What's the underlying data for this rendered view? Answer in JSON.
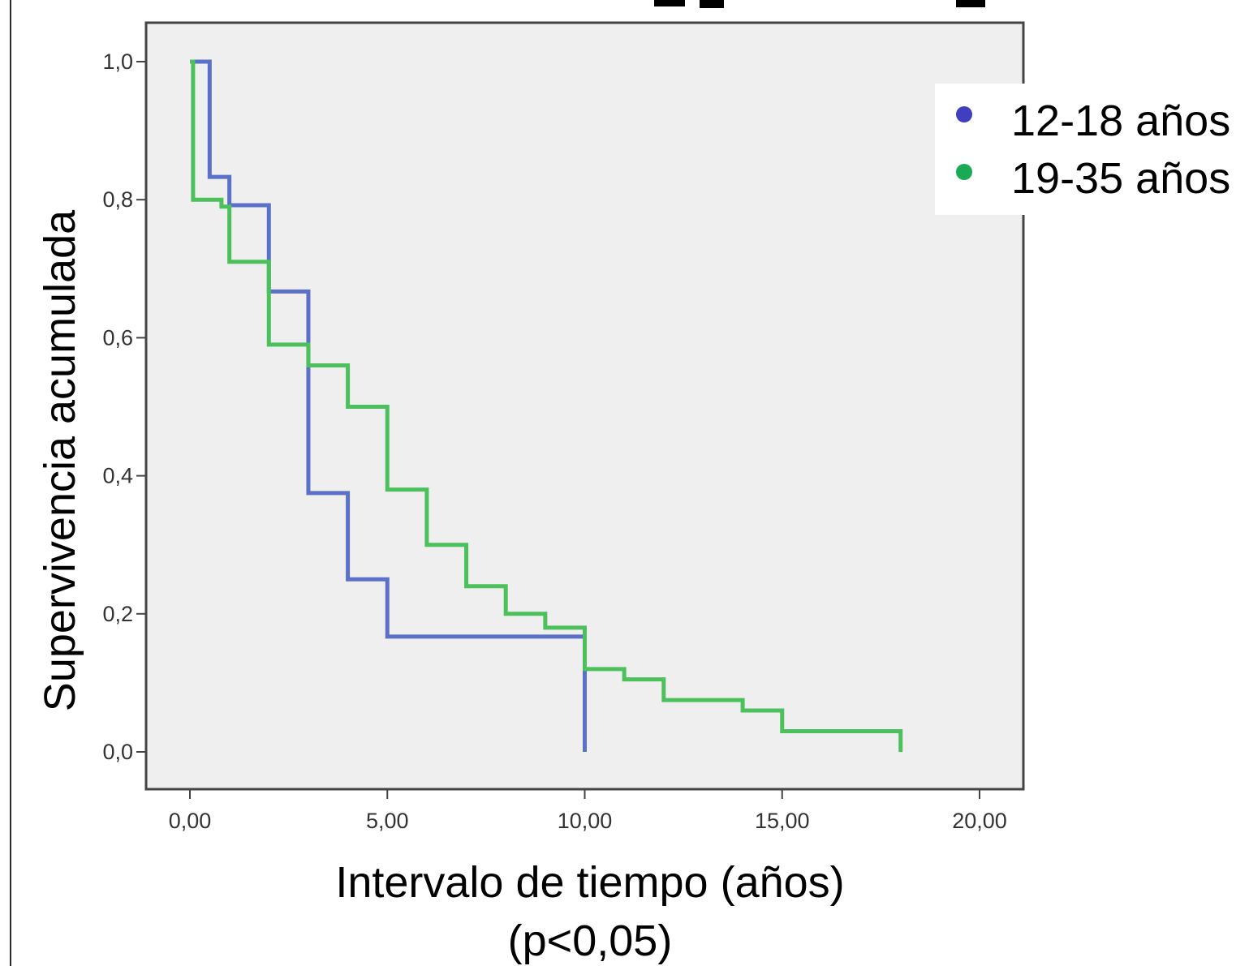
{
  "chart_data": {
    "type": "line",
    "step": true,
    "title": "",
    "xlabel": "Intervalo de tiempo  (años)",
    "xlabel_note": "(p<0,05)",
    "ylabel": "Supervivencia acumulada",
    "xlim": [
      0,
      20
    ],
    "ylim": [
      0,
      1
    ],
    "x_ticks": [
      0,
      5,
      10,
      15,
      20
    ],
    "x_tick_labels": [
      "0,00",
      "5,00",
      "10,00",
      "15,00",
      "20,00"
    ],
    "y_ticks": [
      0,
      0.2,
      0.4,
      0.6,
      0.8,
      1.0
    ],
    "y_tick_labels": [
      "0,0",
      "0,2",
      "0,4",
      "0,6",
      "0,8",
      "1,0"
    ],
    "grid": false,
    "legend_position": "top-right",
    "background": "#efefef",
    "series": [
      {
        "name": "12-18 años",
        "color": "#3f3fbf",
        "line_color": "#5b70c8",
        "x": [
          0,
          0.5,
          1,
          2,
          3,
          4,
          5,
          10,
          10
        ],
        "y": [
          1.0,
          0.833,
          0.792,
          0.667,
          0.375,
          0.25,
          0.167,
          0.083,
          0.0
        ]
      },
      {
        "name": "19-35 años",
        "color": "#1aaa55",
        "line_color": "#4cc05a",
        "x": [
          0,
          0.08,
          0.8,
          1,
          2,
          3,
          4,
          5,
          6,
          7,
          8,
          9,
          10,
          11,
          12,
          14,
          15,
          18,
          18
        ],
        "y": [
          1.0,
          0.8,
          0.79,
          0.71,
          0.59,
          0.56,
          0.5,
          0.38,
          0.3,
          0.24,
          0.2,
          0.18,
          0.12,
          0.105,
          0.075,
          0.06,
          0.03,
          0.0,
          0.0
        ]
      }
    ]
  }
}
